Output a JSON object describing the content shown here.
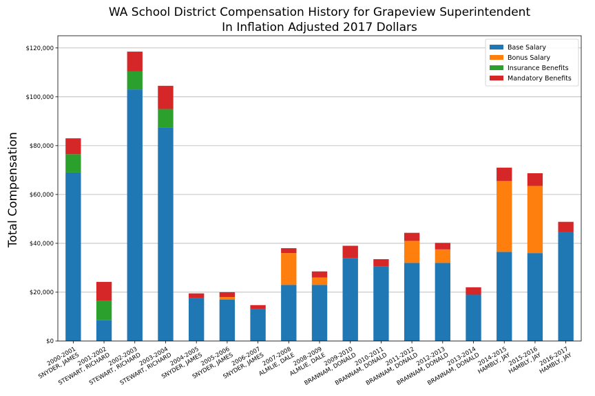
{
  "chart_data": {
    "type": "bar",
    "stacked": true,
    "title": "WA School District Compensation History for Grapeview Superintendent",
    "subtitle": "In Inflation Adjusted 2017 Dollars",
    "xlabel": "",
    "ylabel": "Total Compensation",
    "ylim": [
      0,
      125000
    ],
    "yticks": [
      0,
      20000,
      40000,
      60000,
      80000,
      100000,
      120000
    ],
    "ytick_labels": [
      "$0",
      "$20,000",
      "$40,000",
      "$60,000",
      "$80,000",
      "$100,000",
      "$120,000"
    ],
    "grid": true,
    "legend_position": "top-right",
    "categories": [
      [
        "2000-2001",
        "SNYDER, JAMES"
      ],
      [
        "2001-2002",
        "STEWART, RICHARD"
      ],
      [
        "2002-2003",
        "STEWART, RICHARD"
      ],
      [
        "2003-2004",
        "STEWART, RICHARD"
      ],
      [
        "2004-2005",
        "SNYDER, JAMES"
      ],
      [
        "2005-2006",
        "SNYDER, JAMES"
      ],
      [
        "2006-2007",
        "SNYDER, JAMES"
      ],
      [
        "2007-2008",
        "ALMLIE, DALE"
      ],
      [
        "2008-2009",
        "ALMLIE, DALE"
      ],
      [
        "2009-2010",
        "BRANNAM, DONALD"
      ],
      [
        "2010-2011",
        "BRANNAM, DONALD"
      ],
      [
        "2011-2012",
        "BRANNAM, DONALD"
      ],
      [
        "2012-2013",
        "BRANNAM, DONALD"
      ],
      [
        "2013-2014",
        "BRANNAM, DONALD"
      ],
      [
        "2014-2015",
        "HAMBLY, JAY"
      ],
      [
        "2015-2016",
        "HAMBLY, JAY"
      ],
      [
        "2016-2017",
        "HAMBLY, JAY"
      ]
    ],
    "series": [
      {
        "name": "Base Salary",
        "color": "#1f77b4",
        "values": [
          69000,
          8500,
          103000,
          87500,
          17500,
          17000,
          13000,
          23000,
          23000,
          34000,
          30500,
          32000,
          32000,
          19000,
          36500,
          36000,
          44500
        ]
      },
      {
        "name": "Bonus Salary",
        "color": "#ff7f0e",
        "values": [
          0,
          0,
          0,
          0,
          0,
          1000,
          0,
          13000,
          3000,
          0,
          0,
          9000,
          5500,
          0,
          29000,
          27500,
          0
        ]
      },
      {
        "name": "Insurance Benefits",
        "color": "#2ca02c",
        "values": [
          7500,
          8000,
          7500,
          7500,
          0,
          0,
          0,
          0,
          0,
          0,
          0,
          0,
          0,
          0,
          0,
          0,
          0
        ]
      },
      {
        "name": "Mandatory Benefits",
        "color": "#d62728",
        "values": [
          6500,
          7700,
          8000,
          9500,
          2000,
          2000,
          1700,
          2000,
          2500,
          5000,
          3000,
          3300,
          2700,
          3000,
          5500,
          5200,
          4300
        ]
      }
    ]
  }
}
